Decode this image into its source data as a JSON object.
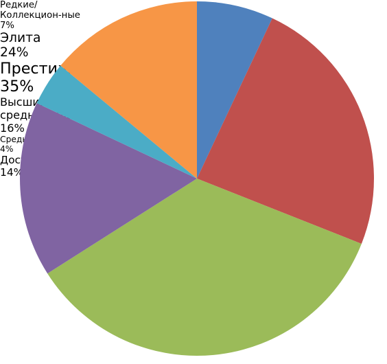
{
  "chart_data": {
    "type": "pie",
    "categories": [
      "Редкие/Коллекцион-ные",
      "Элита",
      "Престиж",
      "Высший средний класс",
      "Средний класс",
      "Доступные"
    ],
    "values": [
      7,
      24,
      35,
      16,
      4,
      14
    ],
    "value_labels": [
      "7%",
      "24%",
      "35%",
      "16%",
      "4%",
      "14%"
    ],
    "colors": [
      "#4f81bd",
      "#c0504d",
      "#9bbb59",
      "#8064a2",
      "#4bacc6",
      "#f79646"
    ]
  }
}
